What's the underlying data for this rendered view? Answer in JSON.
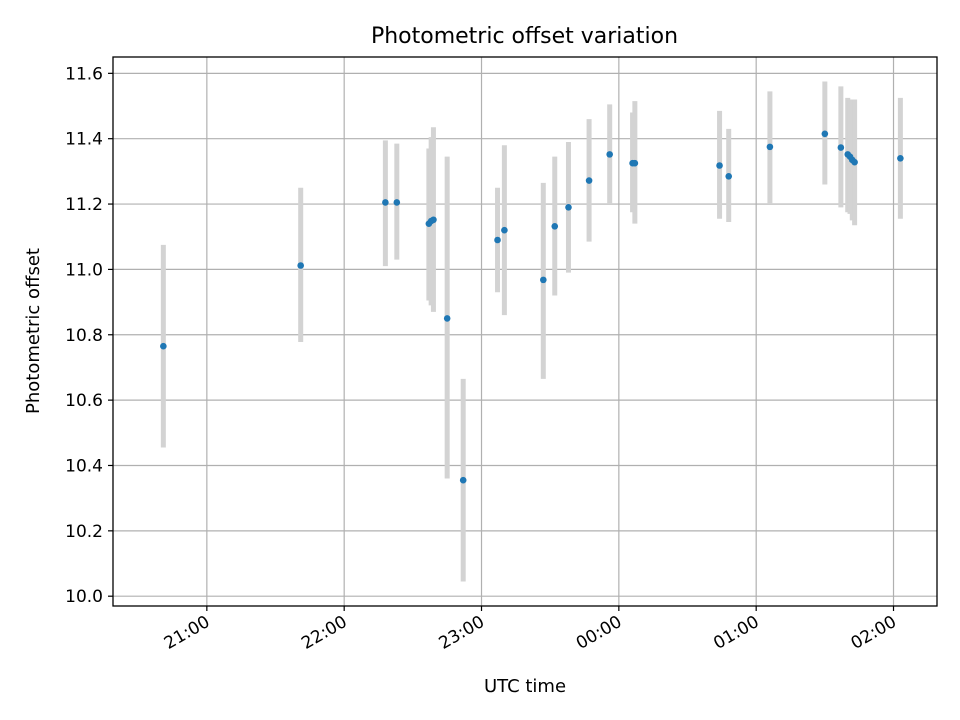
{
  "chart_data": {
    "type": "scatter",
    "title": "Photometric offset variation",
    "xlabel": "UTC time",
    "ylabel": "Photometric offset",
    "x_axis": {
      "ticks": [
        "21:00",
        "22:00",
        "23:00",
        "00:00",
        "01:00",
        "02:00"
      ],
      "range": [
        "20:19",
        "02:19"
      ]
    },
    "y_axis": {
      "ticks": [
        "10.0",
        "10.2",
        "10.4",
        "10.6",
        "10.8",
        "11.0",
        "11.2",
        "11.4",
        "11.6"
      ],
      "range": [
        9.97,
        11.65
      ]
    },
    "grid": true,
    "legend": "none",
    "colors": {
      "marker": "#1f77b4",
      "errorbar": "#d3d3d3",
      "grid": "#b0b0b0"
    },
    "points": [
      {
        "t": "20:41",
        "y": 10.765,
        "lo": 10.455,
        "hi": 11.075
      },
      {
        "t": "21:41",
        "y": 11.012,
        "lo": 10.778,
        "hi": 11.25
      },
      {
        "t": "22:18",
        "y": 11.205,
        "lo": 11.01,
        "hi": 11.395
      },
      {
        "t": "22:23",
        "y": 11.205,
        "lo": 11.03,
        "hi": 11.385
      },
      {
        "t": "22:37",
        "y": 11.14,
        "lo": 10.905,
        "hi": 11.37
      },
      {
        "t": "22:38",
        "y": 11.148,
        "lo": 10.89,
        "hi": 11.405
      },
      {
        "t": "22:39",
        "y": 11.152,
        "lo": 10.87,
        "hi": 11.435
      },
      {
        "t": "22:45",
        "y": 10.85,
        "lo": 10.36,
        "hi": 11.345
      },
      {
        "t": "22:52",
        "y": 10.355,
        "lo": 10.045,
        "hi": 10.665
      },
      {
        "t": "23:07",
        "y": 11.09,
        "lo": 10.93,
        "hi": 11.25
      },
      {
        "t": "23:10",
        "y": 11.12,
        "lo": 10.86,
        "hi": 11.38
      },
      {
        "t": "23:27",
        "y": 10.968,
        "lo": 10.665,
        "hi": 11.265
      },
      {
        "t": "23:32",
        "y": 11.132,
        "lo": 10.92,
        "hi": 11.345
      },
      {
        "t": "23:38",
        "y": 11.19,
        "lo": 10.99,
        "hi": 11.39
      },
      {
        "t": "23:47",
        "y": 11.272,
        "lo": 11.085,
        "hi": 11.46
      },
      {
        "t": "23:56",
        "y": 11.352,
        "lo": 11.2,
        "hi": 11.505
      },
      {
        "t": "00:06",
        "y": 11.325,
        "lo": 11.175,
        "hi": 11.48
      },
      {
        "t": "00:07",
        "y": 11.325,
        "lo": 11.14,
        "hi": 11.515
      },
      {
        "t": "00:44",
        "y": 11.318,
        "lo": 11.155,
        "hi": 11.485
      },
      {
        "t": "00:48",
        "y": 11.285,
        "lo": 11.145,
        "hi": 11.43
      },
      {
        "t": "01:06",
        "y": 11.375,
        "lo": 11.2,
        "hi": 11.545
      },
      {
        "t": "01:30",
        "y": 11.415,
        "lo": 11.26,
        "hi": 11.575
      },
      {
        "t": "01:37",
        "y": 11.373,
        "lo": 11.19,
        "hi": 11.56
      },
      {
        "t": "01:40",
        "y": 11.352,
        "lo": 11.175,
        "hi": 11.525
      },
      {
        "t": "01:41",
        "y": 11.345,
        "lo": 11.17,
        "hi": 11.52
      },
      {
        "t": "01:42",
        "y": 11.335,
        "lo": 11.15,
        "hi": 11.52
      },
      {
        "t": "01:43",
        "y": 11.328,
        "lo": 11.135,
        "hi": 11.52
      },
      {
        "t": "02:03",
        "y": 11.34,
        "lo": 11.155,
        "hi": 11.525
      }
    ]
  }
}
